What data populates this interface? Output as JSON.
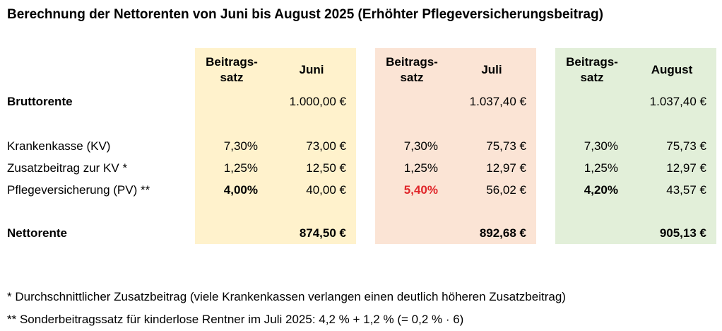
{
  "title": "Berechnung der Nettorenten von Juni bis August 2025 (Erhöhter Pflegeversicherungsbeitrag)",
  "colors": {
    "juni_panel": "#fff2cc",
    "juli_panel": "#fbe4d5",
    "august_panel": "#e2efd9",
    "highlight_red": "#e0262a"
  },
  "columns": [
    {
      "rate_header": "Beitrags-\nsatz",
      "month": "Juni"
    },
    {
      "rate_header": "Beitrags-\nsatz",
      "month": "Juli"
    },
    {
      "rate_header": "Beitrags-\nsatz",
      "month": "August"
    }
  ],
  "rows": {
    "bruttorente": {
      "label": "Bruttorente",
      "values": [
        "1.000,00 €",
        "1.037,40 €",
        "1.037,40 €"
      ]
    },
    "kv": {
      "label": "Krankenkasse (KV)",
      "rates": [
        "7,30%",
        "7,30%",
        "7,30%"
      ],
      "values": [
        "73,00 €",
        "75,73 €",
        "75,73 €"
      ]
    },
    "zusatz": {
      "label": "Zusatzbeitrag zur KV *",
      "rates": [
        "1,25%",
        "1,25%",
        "1,25%"
      ],
      "values": [
        "12,50 €",
        "12,97 €",
        "12,97 €"
      ]
    },
    "pv": {
      "label": "Pflegeversicherung (PV) **",
      "rates": [
        "4,00%",
        "5,40%",
        "4,20%"
      ],
      "values": [
        "40,00 €",
        "56,02 €",
        "43,57 €"
      ]
    },
    "nettorente": {
      "label": "Nettorente",
      "values": [
        "874,50 €",
        "892,68 €",
        "905,13 €"
      ]
    }
  },
  "footnotes": [
    "* Durchschnittlicher Zusatzbeitrag (viele Krankenkassen verlangen einen deutlich höheren Zusatzbeitrag)",
    "** Sonderbeitragssatz für kinderlose Rentner im Juli 2025: 4,2 % + 1,2 % (= 0,2 % · 6)"
  ]
}
